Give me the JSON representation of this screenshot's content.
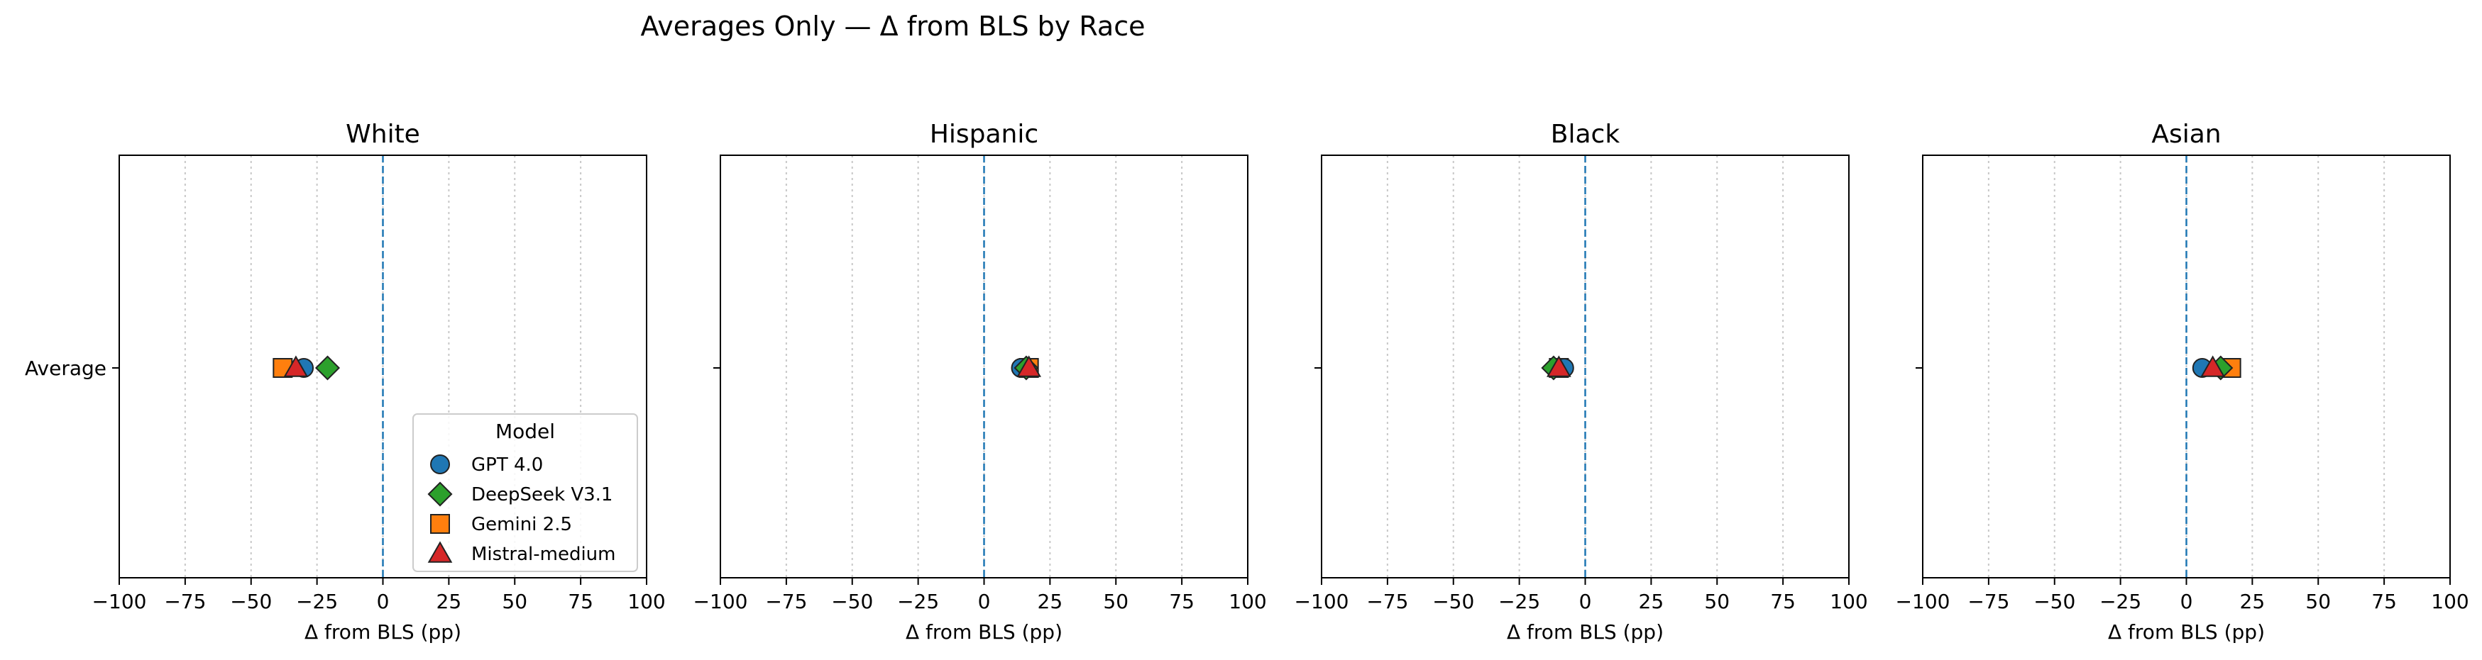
{
  "figure": {
    "title": "Averages Only — Δ from BLS by Race"
  },
  "chart_data": {
    "type": "scatter",
    "title": "Averages Only — Δ from BLS by Race",
    "y_category": "Average",
    "xlabel": "Δ from BLS (pp)",
    "xlim": [
      -100,
      100
    ],
    "xticks": [
      -100,
      -75,
      -50,
      -25,
      0,
      25,
      50,
      75,
      100
    ],
    "xtick_labels": [
      "−100",
      "−75",
      "−50",
      "−25",
      "0",
      "25",
      "50",
      "75",
      "100"
    ],
    "reference_line": 0,
    "grid": "x-dotted",
    "legend": {
      "title": "Model",
      "placement": "lower-right of first panel"
    },
    "models": [
      {
        "name": "GPT 4.0",
        "marker": "circle",
        "color": "#1f77b4"
      },
      {
        "name": "DeepSeek V3.1",
        "marker": "diamond",
        "color": "#2ca02c"
      },
      {
        "name": "Gemini 2.5",
        "marker": "square",
        "color": "#ff7f0e"
      },
      {
        "name": "Mistral-medium",
        "marker": "triangle",
        "color": "#d62728"
      }
    ],
    "panels": [
      {
        "title": "White",
        "values": {
          "GPT 4.0": -30,
          "DeepSeek V3.1": -21,
          "Gemini 2.5": -38,
          "Mistral-medium": -33
        }
      },
      {
        "title": "Hispanic",
        "values": {
          "GPT 4.0": 14,
          "DeepSeek V3.1": 16,
          "Gemini 2.5": 17,
          "Mistral-medium": 17
        }
      },
      {
        "title": "Black",
        "values": {
          "GPT 4.0": -8,
          "DeepSeek V3.1": -12,
          "Gemini 2.5": -10,
          "Mistral-medium": -10
        }
      },
      {
        "title": "Asian",
        "values": {
          "GPT 4.0": 6,
          "DeepSeek V3.1": 13,
          "Gemini 2.5": 17,
          "Mistral-medium": 10
        }
      }
    ]
  }
}
